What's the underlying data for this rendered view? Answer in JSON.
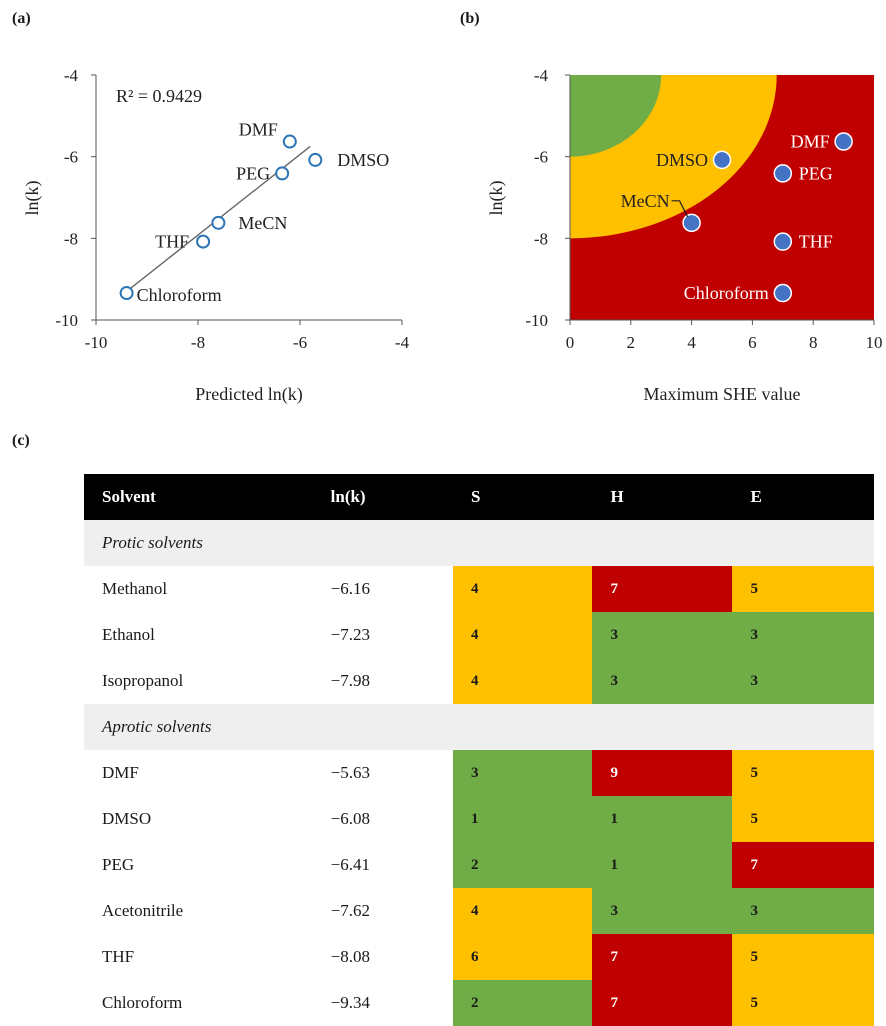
{
  "panels": {
    "a": "(a)",
    "b": "(b)",
    "c": "(c)"
  },
  "colors": {
    "green": "#70ad47",
    "amber": "#ffc000",
    "red": "#c00000",
    "marker_a": "#2e75b6",
    "marker_b": "#4472c4"
  },
  "chart_data": [
    {
      "type": "scatter",
      "title": "",
      "xlabel": "Predicted ln(k)",
      "ylabel": "ln(k)",
      "xlim": [
        -10,
        -4
      ],
      "ylim": [
        -10,
        -4
      ],
      "xticks": [
        "-10",
        "-8",
        "-6",
        "-4"
      ],
      "yticks": [
        "-4",
        "-6",
        "-8",
        "-10"
      ],
      "annotation": "R² = 0.9429",
      "trendline": {
        "x": [
          -9.4,
          -5.8
        ],
        "y": [
          -9.3,
          -5.75
        ]
      },
      "points": [
        {
          "label": "DMF",
          "x": -6.2,
          "y": -5.63
        },
        {
          "label": "DMSO",
          "x": -5.7,
          "y": -6.08
        },
        {
          "label": "PEG",
          "x": -6.35,
          "y": -6.41
        },
        {
          "label": "MeCN",
          "x": -7.6,
          "y": -7.62
        },
        {
          "label": "THF",
          "x": -7.9,
          "y": -8.08
        },
        {
          "label": "Chloroform",
          "x": -9.4,
          "y": -9.34
        }
      ]
    },
    {
      "type": "scatter",
      "title": "",
      "xlabel": "Maximum SHE value",
      "ylabel": "ln(k)",
      "xlim": [
        0,
        10
      ],
      "ylim": [
        -10,
        -4
      ],
      "xticks": [
        "0",
        "2",
        "4",
        "6",
        "8",
        "10"
      ],
      "yticks": [
        "-4",
        "-6",
        "-8",
        "-10"
      ],
      "regions": [
        "green",
        "amber",
        "red"
      ],
      "points": [
        {
          "label": "DMF",
          "x": 9,
          "y": -5.63
        },
        {
          "label": "DMSO",
          "x": 5,
          "y": -6.08
        },
        {
          "label": "PEG",
          "x": 7,
          "y": -6.41
        },
        {
          "label": "MeCN",
          "x": 4,
          "y": -7.62
        },
        {
          "label": "THF",
          "x": 7,
          "y": -8.08
        },
        {
          "label": "Chloroform",
          "x": 7,
          "y": -9.34
        }
      ]
    },
    {
      "type": "table",
      "headers": [
        "Solvent",
        "ln(k)",
        "S",
        "H",
        "E"
      ],
      "rows": [
        {
          "group": "Protic solvents"
        },
        {
          "cells": [
            "Methanol",
            "−6.16",
            "4",
            "7",
            "5"
          ],
          "colors": [
            "amber",
            "red",
            "amber"
          ]
        },
        {
          "cells": [
            "Ethanol",
            "−7.23",
            "4",
            "3",
            "3"
          ],
          "colors": [
            "amber",
            "green",
            "green"
          ]
        },
        {
          "cells": [
            "Isopropanol",
            "−7.98",
            "4",
            "3",
            "3"
          ],
          "colors": [
            "amber",
            "green",
            "green"
          ]
        },
        {
          "group": "Aprotic solvents"
        },
        {
          "cells": [
            "DMF",
            "−5.63",
            "3",
            "9",
            "5"
          ],
          "colors": [
            "green",
            "red",
            "amber"
          ]
        },
        {
          "cells": [
            "DMSO",
            "−6.08",
            "1",
            "1",
            "5"
          ],
          "colors": [
            "green",
            "green",
            "amber"
          ]
        },
        {
          "cells": [
            "PEG",
            "−6.41",
            "2",
            "1",
            "7"
          ],
          "colors": [
            "green",
            "green",
            "red"
          ]
        },
        {
          "cells": [
            "Acetonitrile",
            "−7.62",
            "4",
            "3",
            "3"
          ],
          "colors": [
            "amber",
            "green",
            "green"
          ]
        },
        {
          "cells": [
            "THF",
            "−8.08",
            "6",
            "7",
            "5"
          ],
          "colors": [
            "amber",
            "red",
            "amber"
          ]
        },
        {
          "cells": [
            "Chloroform",
            "−9.34",
            "2",
            "7",
            "5"
          ],
          "colors": [
            "green",
            "red",
            "amber"
          ]
        }
      ]
    }
  ]
}
